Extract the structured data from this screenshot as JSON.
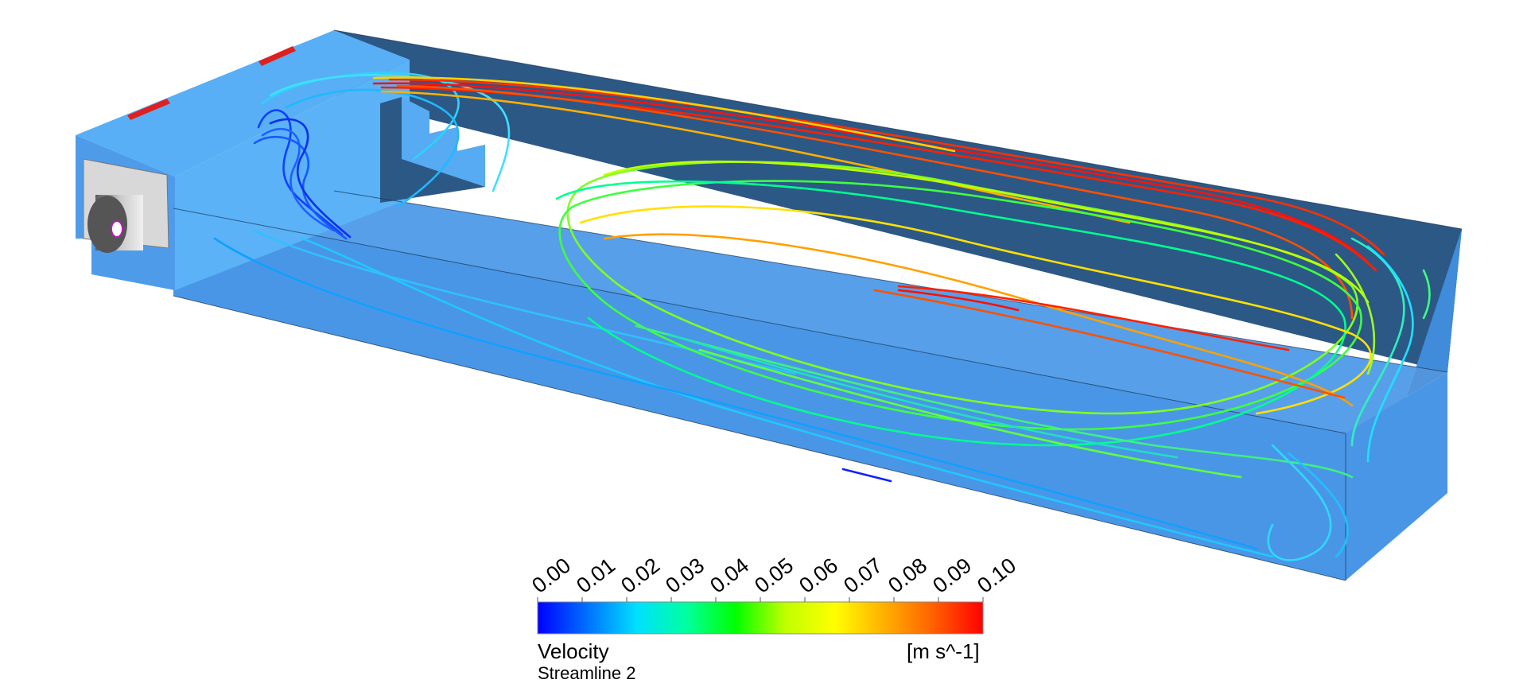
{
  "legend": {
    "variable": "Velocity",
    "object": "Streamline 2",
    "unit": "[m s^-1]",
    "tick_labels": [
      "0.00",
      "0.01",
      "0.02",
      "0.03",
      "0.04",
      "0.05",
      "0.06",
      "0.07",
      "0.08",
      "0.09",
      "0.10"
    ],
    "range": [
      0.0,
      0.1
    ],
    "colormap": [
      "#0000ff",
      "#0070ff",
      "#00e0ff",
      "#00ffa0",
      "#00ff00",
      "#c0ff00",
      "#ffff00",
      "#ffb000",
      "#ff6000",
      "#ff0000"
    ]
  },
  "colors": {
    "domain_wall_light": "#55aef5",
    "domain_wall_floor": "#4a99e8",
    "domain_wall_back": "#2c5886",
    "inlet_marker": "#e02020",
    "fan_body": "#8a8a8a"
  }
}
